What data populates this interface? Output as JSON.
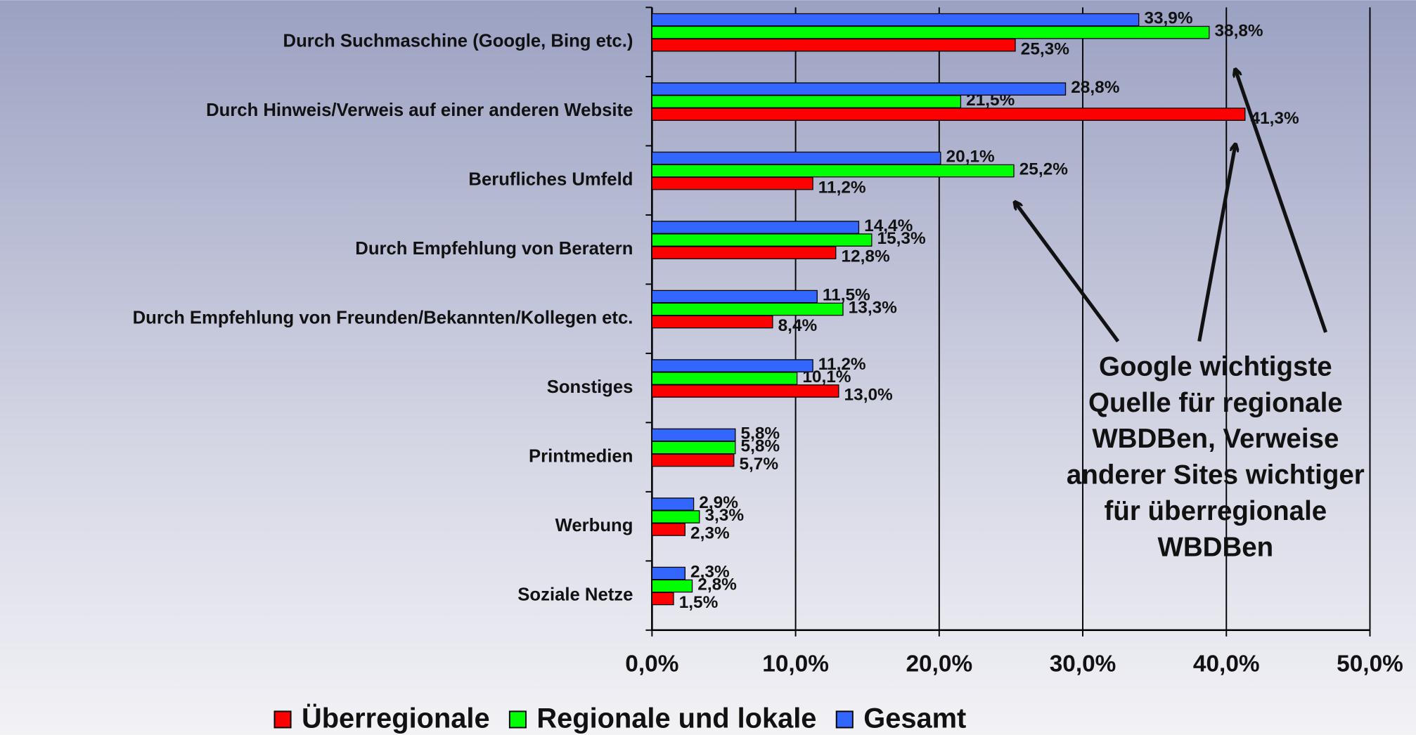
{
  "chart_data": {
    "type": "bar",
    "orientation": "horizontal",
    "categories": [
      "Durch Suchmaschine (Google, Bing etc.)",
      "Durch Hinweis/Verweis auf einer anderen Website",
      "Berufliches Umfeld",
      "Durch Empfehlung von Beratern",
      "Durch Empfehlung von Freunden/Bekannten/Kollegen etc.",
      "Sonstiges",
      "Printmedien",
      "Werbung",
      "Soziale Netze"
    ],
    "series": [
      {
        "name": "Überregionale",
        "color": "#ff0000",
        "values": [
          25.3,
          41.3,
          11.2,
          12.8,
          8.4,
          13.0,
          5.7,
          2.3,
          1.5
        ],
        "value_labels": [
          "25,3%",
          "41,3%",
          "11,2%",
          "12,8%",
          "8,4%",
          "13,0%",
          "5,7%",
          "2,3%",
          "1,5%"
        ]
      },
      {
        "name": "Regionale und lokale",
        "color": "#00ff00",
        "values": [
          38.8,
          21.5,
          25.2,
          15.3,
          13.3,
          10.1,
          5.8,
          3.3,
          2.8
        ],
        "value_labels": [
          "38,8%",
          "21,5%",
          "25,2%",
          "15,3%",
          "13,3%",
          "10,1%",
          "5,8%",
          "3,3%",
          "2,8%"
        ]
      },
      {
        "name": "Gesamt",
        "color": "#3366ff",
        "values": [
          33.9,
          28.8,
          20.1,
          14.4,
          11.5,
          11.2,
          5.8,
          2.9,
          2.3
        ],
        "value_labels": [
          "33,9%",
          "28,8%",
          "20,1%",
          "14,4%",
          "11,5%",
          "11,2%",
          "5,8%",
          "2,9%",
          "2,3%"
        ]
      }
    ],
    "xlim": [
      0,
      50
    ],
    "xticks": [
      {
        "value": 0,
        "label": "0,0%"
      },
      {
        "value": 10,
        "label": "10,0%"
      },
      {
        "value": 20,
        "label": "20,0%"
      },
      {
        "value": 30,
        "label": "30,0%"
      },
      {
        "value": 40,
        "label": "40,0%"
      },
      {
        "value": 50,
        "label": "50,0%"
      }
    ],
    "grid": true,
    "legend": "bottom",
    "annotation": [
      "Google wichtigste",
      "Quelle für regionale",
      "WBDBen, Verweise",
      "anderer Sites wichtiger",
      "für überregionale",
      "WBDBen"
    ]
  }
}
